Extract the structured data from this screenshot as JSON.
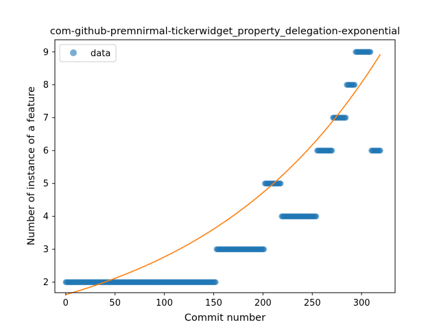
{
  "chart_data": {
    "type": "scatter",
    "title": "com-github-premnirmal-tickerwidget_property_delegation-exponential",
    "xlabel": "Commit number",
    "ylabel": "Number of instance of a feature",
    "xlim": [
      -11,
      334
    ],
    "ylim": [
      1.68,
      9.37
    ],
    "x_ticks": [
      0,
      50,
      100,
      150,
      200,
      250,
      300
    ],
    "y_ticks": [
      2,
      3,
      4,
      5,
      6,
      7,
      8,
      9
    ],
    "grid": false,
    "legend": {
      "position": "upper-left",
      "entries": [
        "data"
      ]
    },
    "colors": {
      "data": "#1f77b4",
      "fit": "#ff7f0e"
    },
    "series": [
      {
        "name": "data",
        "style": "markers",
        "segments": [
          {
            "x_start": 0,
            "x_end": 152,
            "y": 2
          },
          {
            "x_start": 153,
            "x_end": 201,
            "y": 3
          },
          {
            "x_start": 202,
            "x_end": 218,
            "y": 5
          },
          {
            "x_start": 219,
            "x_end": 254,
            "y": 4
          },
          {
            "x_start": 255,
            "x_end": 270,
            "y": 6
          },
          {
            "x_start": 271,
            "x_end": 284,
            "y": 7
          },
          {
            "x_start": 285,
            "x_end": 293,
            "y": 8
          },
          {
            "x_start": 294,
            "x_end": 309,
            "y": 9
          },
          {
            "x_start": 310,
            "x_end": 319,
            "y": 6
          }
        ]
      },
      {
        "style": "line",
        "model": "exponential",
        "a": 1.62,
        "b": 0.00535,
        "x_range": [
          0,
          319
        ]
      }
    ]
  }
}
